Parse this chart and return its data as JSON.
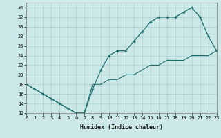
{
  "title": "",
  "xlabel": "Humidex (Indice chaleur)",
  "ylabel": "",
  "background_color": "#cce8e8",
  "line_color": "#1a6b6b",
  "grid_color": "#a8cccc",
  "line1_x": [
    0,
    1,
    2,
    3,
    4,
    5,
    6,
    7,
    8,
    9,
    10,
    11,
    12,
    13,
    14,
    15,
    16,
    17,
    18,
    19,
    20,
    21,
    22,
    23
  ],
  "line1_y": [
    18,
    17,
    16,
    15,
    14,
    13,
    12,
    12,
    17,
    21,
    24,
    25,
    25,
    27,
    29,
    31,
    32,
    32,
    32,
    33,
    34,
    32,
    28,
    25
  ],
  "line2_x": [
    0,
    1,
    2,
    3,
    4,
    5,
    6,
    7,
    8,
    9,
    10,
    11,
    12,
    13,
    14,
    15,
    16,
    17,
    18,
    19,
    20,
    21,
    22,
    23
  ],
  "line2_y": [
    18,
    17,
    16,
    15,
    14,
    13,
    12,
    12,
    18,
    18,
    19,
    19,
    20,
    20,
    21,
    22,
    22,
    23,
    23,
    23,
    24,
    24,
    24,
    25
  ],
  "xlim": [
    0,
    23
  ],
  "ylim": [
    12,
    35
  ],
  "yticks": [
    12,
    14,
    16,
    18,
    20,
    22,
    24,
    26,
    28,
    30,
    32,
    34
  ],
  "xticks": [
    0,
    1,
    2,
    3,
    4,
    5,
    6,
    7,
    8,
    9,
    10,
    11,
    12,
    13,
    14,
    15,
    16,
    17,
    18,
    19,
    20,
    21,
    22,
    23
  ],
  "tick_fontsize": 5.0,
  "xlabel_fontsize": 6.0
}
